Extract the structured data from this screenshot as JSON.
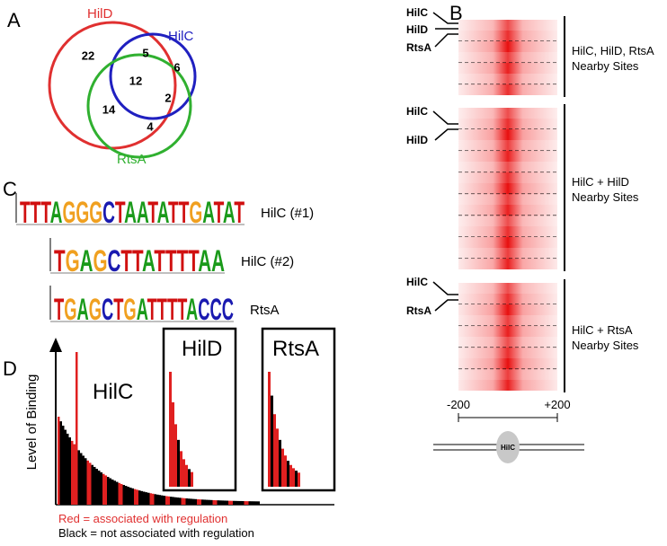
{
  "panels": {
    "a": "A",
    "b": "B",
    "c": "C",
    "d": "D"
  },
  "venn": {
    "labels": [
      "HilD",
      "HilC",
      "RtsA"
    ],
    "counts": [
      "22",
      "5",
      "6",
      "12",
      "2",
      "14",
      "4"
    ]
  },
  "heatmap": {
    "row_labels": [
      "HilC",
      "HilD",
      "RtsA",
      "HilC",
      "HilD",
      "HilC",
      "RtsA"
    ],
    "groups": [
      {
        "line1": "HilC, HilD, RtsA",
        "line2": "Nearby Sites"
      },
      {
        "line1": "HilC + HilD",
        "line2": "Nearby Sites"
      },
      {
        "line1": "HilC + RtsA",
        "line2": "Nearby Sites"
      }
    ],
    "axis": [
      "-200",
      "+200"
    ],
    "site": "HilC"
  },
  "logos": [
    {
      "label": "HilC (#1)",
      "sequence": "TTTAGGGCTAATATTGATAT"
    },
    {
      "label": "HilC (#2)",
      "sequence": "TGAGCTTATTTTAA"
    },
    {
      "label": "RtsA",
      "sequence": "TGAGCTGATTTTACCC"
    }
  ],
  "binding": {
    "y_label": "Level of Binding",
    "main": "HilC",
    "insets": [
      "HilD",
      "RtsA"
    ],
    "legend": [
      "Red = associated with regulation",
      "Black = not associated with regulation"
    ]
  }
}
